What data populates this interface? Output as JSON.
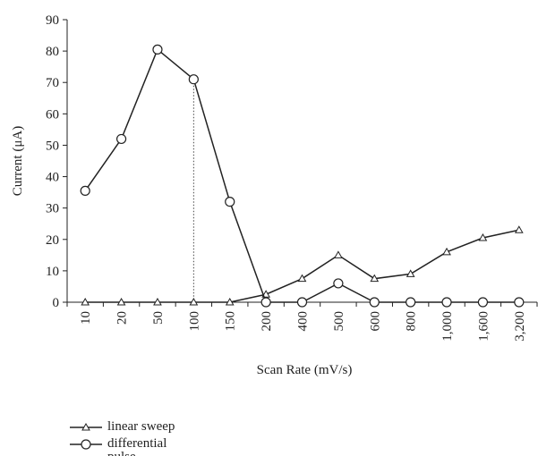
{
  "chart_data": {
    "type": "line",
    "x_label": "Scan Rate (mV/s)",
    "y_label": "Current (μA)",
    "categories": [
      "10",
      "20",
      "50",
      "100",
      "150",
      "200",
      "400",
      "500",
      "600",
      "800",
      "1,000",
      "1,600",
      "3,200"
    ],
    "series": [
      {
        "name": "linear sweep",
        "color": "#222222",
        "marker": "triangle",
        "values": [
          0,
          0,
          0,
          0,
          0,
          2.5,
          7.5,
          15,
          7.5,
          9,
          16,
          20.5,
          23
        ]
      },
      {
        "name": "differential pulse",
        "color": "#222222",
        "marker": "circle",
        "values": [
          35.5,
          52,
          80.5,
          71,
          32,
          0,
          0,
          6,
          0,
          0,
          0,
          0,
          0
        ]
      }
    ],
    "ylim": [
      0,
      90
    ],
    "yticks": [
      0,
      10,
      20,
      30,
      40,
      50,
      60,
      70,
      80,
      90
    ]
  }
}
